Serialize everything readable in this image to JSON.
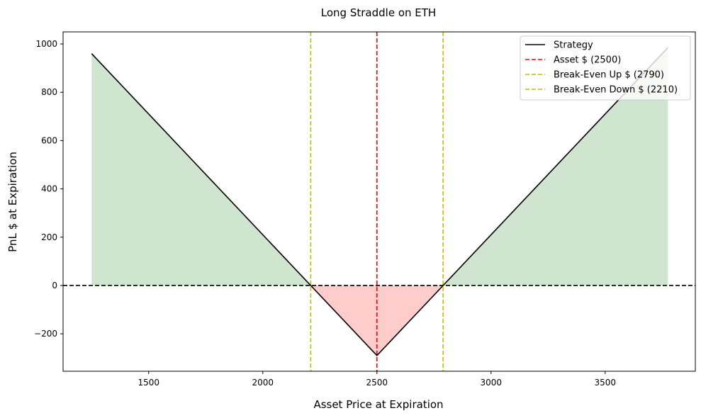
{
  "chart_data": {
    "type": "line",
    "title": "Long Straddle on ETH",
    "xlabel": "Asset Price at Expiration",
    "ylabel": "PnL $ at Expiration",
    "xlim": [
      1125,
      3895
    ],
    "ylim": [
      -355,
      1050
    ],
    "xticks": [
      1500,
      2000,
      2500,
      3000,
      3500
    ],
    "xtick_labels": [
      "1500",
      "2000",
      "2500",
      "3000",
      "3500"
    ],
    "yticks": [
      -200,
      0,
      200,
      400,
      600,
      800,
      1000
    ],
    "ytick_labels": [
      "−200",
      "0",
      "200",
      "400",
      "600",
      "800",
      "1000"
    ],
    "grid": false,
    "legend_position": "top-right",
    "series": [
      {
        "name": "Strategy",
        "color": "#000000",
        "style": "solid",
        "x": [
          1250,
          2500,
          3775
        ],
        "y": [
          960,
          -290,
          985
        ]
      }
    ],
    "reference_lines": [
      {
        "name": "Asset $ (2500)",
        "orientation": "vertical",
        "value": 2500,
        "color": "#ff0000",
        "style": "dashed"
      },
      {
        "name": "Break-Even Up $ (2790)",
        "orientation": "vertical",
        "value": 2790,
        "color": "#bfbf00",
        "style": "dashed"
      },
      {
        "name": "Break-Even Down $ (2210)",
        "orientation": "vertical",
        "value": 2210,
        "color": "#bfbf00",
        "style": "dashed"
      },
      {
        "name": "zero-line",
        "orientation": "horizontal",
        "value": 0,
        "color": "#000000",
        "style": "dashed"
      }
    ],
    "fill": {
      "profit_color": "#cfe5cf",
      "loss_color": "#ffcccc"
    },
    "legend": [
      "Strategy",
      "Asset $ (2500)",
      "Break-Even Up $ (2790)",
      "Break-Even Down $ (2210)"
    ]
  }
}
